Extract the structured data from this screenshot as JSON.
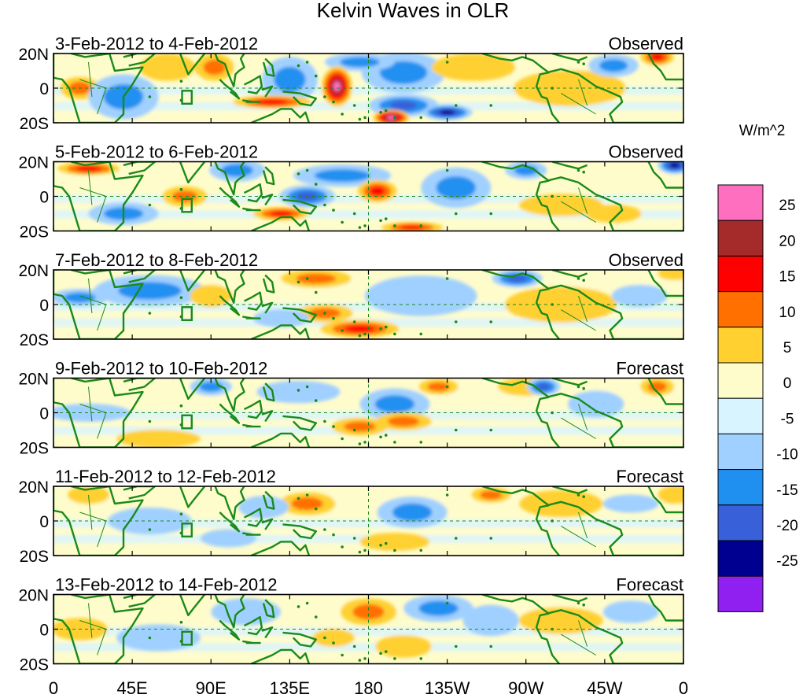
{
  "chart_data": {
    "type": "heatmap",
    "title": "Kelvin Waves in OLR",
    "units_label": "W/m^2",
    "x_ticks": [
      "0",
      "45E",
      "90E",
      "135E",
      "180",
      "135W",
      "90W",
      "45W",
      "0"
    ],
    "y_ticks": [
      "20N",
      "0",
      "20S"
    ],
    "xlim_deg_east": [
      0,
      360
    ],
    "ylim_deg": [
      -20,
      20
    ],
    "colorbar": {
      "labels": [
        "25",
        "20",
        "15",
        "10",
        "5",
        "0",
        "-5",
        "-10",
        "-15",
        "-20",
        "-25"
      ],
      "colors": [
        "#ff6fbf",
        "#a52a2a",
        "#ff0000",
        "#ff7000",
        "#ffd030",
        "#fffccc",
        "#d8f4ff",
        "#a0d0ff",
        "#2090f0",
        "#3860d8",
        "#000090",
        "#9020f0"
      ]
    },
    "panels": [
      {
        "period": "3-Feb-2012 to 4-Feb-2012",
        "status": "Observed",
        "features": [
          {
            "lon": 200,
            "lat": 9,
            "v": -10,
            "w": 30,
            "h": 18
          },
          {
            "lon": 135,
            "lat": 5,
            "v": -10,
            "w": 20,
            "h": 20
          },
          {
            "lon": 175,
            "lat": 15,
            "v": -10,
            "w": 25,
            "h": 8
          },
          {
            "lon": 200,
            "lat": -10,
            "v": -15,
            "w": 25,
            "h": 10
          },
          {
            "lon": 225,
            "lat": -14,
            "v": -22,
            "w": 18,
            "h": 7
          },
          {
            "lon": 162,
            "lat": 1,
            "v": 27,
            "w": 11,
            "h": 18
          },
          {
            "lon": 193,
            "lat": -17,
            "v": 27,
            "w": 13,
            "h": 7
          },
          {
            "lon": 125,
            "lat": -8,
            "v": 18,
            "w": 28,
            "h": 6
          },
          {
            "lon": 92,
            "lat": 12,
            "v": 12,
            "w": 14,
            "h": 12
          },
          {
            "lon": 15,
            "lat": 0,
            "v": 12,
            "w": 14,
            "h": 10
          },
          {
            "lon": 295,
            "lat": 0,
            "v": 7,
            "w": 40,
            "h": 16
          },
          {
            "lon": 345,
            "lat": 18,
            "v": 18,
            "w": 12,
            "h": 8
          },
          {
            "lon": 320,
            "lat": 13,
            "v": -10,
            "w": 18,
            "h": 10
          },
          {
            "lon": 40,
            "lat": -5,
            "v": -10,
            "w": 25,
            "h": 20
          },
          {
            "lon": 240,
            "lat": 12,
            "v": 7,
            "w": 30,
            "h": 12
          },
          {
            "lon": 65,
            "lat": 12,
            "v": 7,
            "w": 20,
            "h": 12
          }
        ]
      },
      {
        "period": "5-Feb-2012 to 6-Feb-2012",
        "status": "Observed",
        "features": [
          {
            "lon": 20,
            "lat": 16,
            "v": 18,
            "w": 22,
            "h": 6
          },
          {
            "lon": 75,
            "lat": 0,
            "v": 12,
            "w": 16,
            "h": 9
          },
          {
            "lon": 105,
            "lat": 15,
            "v": -10,
            "w": 20,
            "h": 10
          },
          {
            "lon": 165,
            "lat": 12,
            "v": -10,
            "w": 35,
            "h": 10
          },
          {
            "lon": 145,
            "lat": 0,
            "v": -15,
            "w": 20,
            "h": 10
          },
          {
            "lon": 130,
            "lat": -10,
            "v": 18,
            "w": 20,
            "h": 6
          },
          {
            "lon": 185,
            "lat": 3,
            "v": 18,
            "w": 14,
            "h": 10
          },
          {
            "lon": 205,
            "lat": -18,
            "v": 18,
            "w": 22,
            "h": 5
          },
          {
            "lon": 230,
            "lat": 5,
            "v": -10,
            "w": 25,
            "h": 18
          },
          {
            "lon": 270,
            "lat": 15,
            "v": -10,
            "w": 15,
            "h": 8
          },
          {
            "lon": 355,
            "lat": 18,
            "v": -22,
            "w": 12,
            "h": 8
          },
          {
            "lon": 290,
            "lat": -5,
            "v": 7,
            "w": 30,
            "h": 10
          },
          {
            "lon": 320,
            "lat": -10,
            "v": 7,
            "w": 20,
            "h": 8
          },
          {
            "lon": 40,
            "lat": -10,
            "v": -10,
            "w": 25,
            "h": 10
          }
        ]
      },
      {
        "period": "7-Feb-2012 to 8-Feb-2012",
        "status": "Observed",
        "features": [
          {
            "lon": 55,
            "lat": 8,
            "v": -10,
            "w": 40,
            "h": 14
          },
          {
            "lon": 15,
            "lat": 4,
            "v": -10,
            "w": 20,
            "h": 8
          },
          {
            "lon": 175,
            "lat": -14,
            "v": 15,
            "w": 28,
            "h": 8
          },
          {
            "lon": 155,
            "lat": -5,
            "v": 12,
            "w": 20,
            "h": 8
          },
          {
            "lon": 150,
            "lat": 15,
            "v": 10,
            "w": 25,
            "h": 8
          },
          {
            "lon": 265,
            "lat": 15,
            "v": -15,
            "w": 18,
            "h": 8
          },
          {
            "lon": 210,
            "lat": 5,
            "v": -8,
            "w": 40,
            "h": 18
          },
          {
            "lon": 290,
            "lat": 0,
            "v": 6,
            "w": 40,
            "h": 16
          },
          {
            "lon": 335,
            "lat": 5,
            "v": -8,
            "w": 20,
            "h": 10
          },
          {
            "lon": 355,
            "lat": 18,
            "v": 8,
            "w": 12,
            "h": 6
          },
          {
            "lon": 90,
            "lat": 5,
            "v": 8,
            "w": 15,
            "h": 10
          },
          {
            "lon": 130,
            "lat": -8,
            "v": -8,
            "w": 20,
            "h": 8
          }
        ]
      },
      {
        "period": "9-Feb-2012 to 10-Feb-2012",
        "status": "Forecast",
        "features": [
          {
            "lon": 90,
            "lat": 15,
            "v": -10,
            "w": 15,
            "h": 8
          },
          {
            "lon": 140,
            "lat": 12,
            "v": -8,
            "w": 30,
            "h": 10
          },
          {
            "lon": 195,
            "lat": 5,
            "v": -10,
            "w": 25,
            "h": 14
          },
          {
            "lon": 175,
            "lat": -8,
            "v": 12,
            "w": 20,
            "h": 8
          },
          {
            "lon": 200,
            "lat": -5,
            "v": 10,
            "w": 20,
            "h": 8
          },
          {
            "lon": 220,
            "lat": 15,
            "v": 12,
            "w": 14,
            "h": 7
          },
          {
            "lon": 270,
            "lat": 15,
            "v": 8,
            "w": 20,
            "h": 8
          },
          {
            "lon": 280,
            "lat": 15,
            "v": -15,
            "w": 12,
            "h": 8
          },
          {
            "lon": 310,
            "lat": 5,
            "v": -8,
            "w": 20,
            "h": 12
          },
          {
            "lon": 345,
            "lat": 15,
            "v": 10,
            "w": 12,
            "h": 8
          },
          {
            "lon": 20,
            "lat": 0,
            "v": -8,
            "w": 30,
            "h": 8
          },
          {
            "lon": 60,
            "lat": -15,
            "v": 6,
            "w": 30,
            "h": 8
          }
        ]
      },
      {
        "period": "11-Feb-2012 to 12-Feb-2012",
        "status": "Forecast",
        "features": [
          {
            "lon": 145,
            "lat": 10,
            "v": 10,
            "w": 20,
            "h": 10
          },
          {
            "lon": 120,
            "lat": 8,
            "v": -8,
            "w": 18,
            "h": 10
          },
          {
            "lon": 205,
            "lat": 5,
            "v": -10,
            "w": 25,
            "h": 14
          },
          {
            "lon": 250,
            "lat": 15,
            "v": 12,
            "w": 14,
            "h": 7
          },
          {
            "lon": 195,
            "lat": -12,
            "v": 8,
            "w": 25,
            "h": 8
          },
          {
            "lon": 290,
            "lat": 10,
            "v": 6,
            "w": 30,
            "h": 12
          },
          {
            "lon": 330,
            "lat": 10,
            "v": -8,
            "w": 20,
            "h": 8
          },
          {
            "lon": 355,
            "lat": 15,
            "v": 8,
            "w": 12,
            "h": 8
          },
          {
            "lon": 20,
            "lat": 15,
            "v": 8,
            "w": 15,
            "h": 8
          },
          {
            "lon": 55,
            "lat": 0,
            "v": -8,
            "w": 30,
            "h": 12
          },
          {
            "lon": 100,
            "lat": -10,
            "v": -6,
            "w": 20,
            "h": 8
          }
        ]
      },
      {
        "period": "13-Feb-2012 to 14-Feb-2012",
        "status": "Forecast",
        "features": [
          {
            "lon": 180,
            "lat": 10,
            "v": 10,
            "w": 20,
            "h": 12
          },
          {
            "lon": 220,
            "lat": 12,
            "v": -10,
            "w": 25,
            "h": 12
          },
          {
            "lon": 250,
            "lat": 5,
            "v": -8,
            "w": 20,
            "h": 14
          },
          {
            "lon": 200,
            "lat": -10,
            "v": 8,
            "w": 20,
            "h": 10
          },
          {
            "lon": 110,
            "lat": 10,
            "v": -8,
            "w": 25,
            "h": 12
          },
          {
            "lon": 60,
            "lat": -5,
            "v": -6,
            "w": 30,
            "h": 12
          },
          {
            "lon": 290,
            "lat": 5,
            "v": 6,
            "w": 30,
            "h": 12
          },
          {
            "lon": 330,
            "lat": 10,
            "v": -6,
            "w": 20,
            "h": 10
          },
          {
            "lon": 15,
            "lat": 0,
            "v": 6,
            "w": 20,
            "h": 10
          },
          {
            "lon": 160,
            "lat": -5,
            "v": 6,
            "w": 15,
            "h": 8
          }
        ]
      }
    ]
  },
  "colors": {
    "coastline": "#1a8a1a",
    "dashed": "#1a8a1a"
  }
}
